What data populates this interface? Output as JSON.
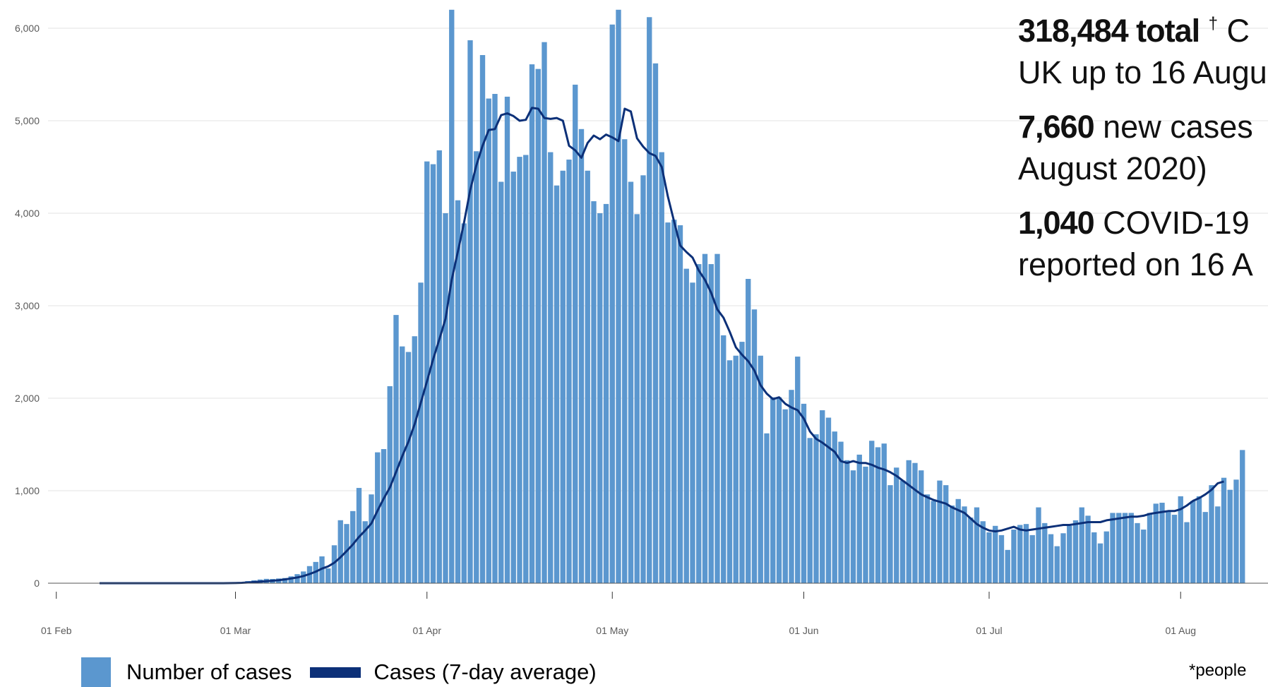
{
  "chart_data": {
    "type": "bar",
    "x_ticks": [
      "01 Feb",
      "01 Mar",
      "01 Apr",
      "01 May",
      "01 Jun",
      "01 Jul",
      "01 Aug"
    ],
    "y_ticks": [
      "0",
      "1,000",
      "2,000",
      "3,000",
      "4,000",
      "5,000",
      "6,000"
    ],
    "ylim": [
      0,
      6200
    ],
    "grid": true,
    "start_date": "2020-01-31",
    "series": [
      {
        "name": "Number of cases",
        "type": "bar",
        "color": "#5b97cf",
        "values": [
          2,
          0,
          0,
          0,
          0,
          0,
          0,
          0,
          3,
          0,
          0,
          0,
          0,
          0,
          0,
          0,
          0,
          0,
          0,
          0,
          0,
          0,
          0,
          0,
          0,
          0,
          0,
          0,
          0,
          4,
          3,
          12,
          23,
          31,
          40,
          47,
          46,
          51,
          56,
          74,
          98,
          127,
          185,
          230,
          290,
          160,
          410,
          681,
          640,
          780,
          1030,
          670,
          960,
          1415,
          1450,
          2130,
          2900,
          2560,
          2500,
          2670,
          3250,
          4560,
          4530,
          4680,
          4000,
          6200,
          4140,
          3890,
          5870,
          4670,
          5710,
          5240,
          5290,
          4340,
          5260,
          4450,
          4610,
          4630,
          5610,
          5560,
          5850,
          4660,
          4300,
          4460,
          4580,
          5390,
          4910,
          4460,
          4130,
          4000,
          4100,
          6040,
          6200,
          4800,
          4340,
          3990,
          4410,
          6120,
          5620,
          4660,
          3900,
          3930,
          3870,
          3400,
          3250,
          3450,
          3560,
          3450,
          3560,
          2680,
          2410,
          2460,
          2610,
          3290,
          2960,
          2460,
          1620,
          2010,
          2010,
          1880,
          2090,
          2450,
          1940,
          1570,
          1610,
          1870,
          1790,
          1640,
          1530,
          1330,
          1220,
          1390,
          1260,
          1540,
          1470,
          1510,
          1060,
          1250,
          1110,
          1330,
          1300,
          1220,
          960,
          890,
          1110,
          1060,
          840,
          910,
          830,
          710,
          820,
          670,
          550,
          620,
          520,
          360,
          580,
          630,
          640,
          520,
          820,
          650,
          530,
          400,
          540,
          620,
          680,
          820,
          730,
          550,
          430,
          560,
          760,
          760,
          760,
          760,
          650,
          580,
          760,
          860,
          870,
          770,
          740,
          940,
          660,
          890,
          940,
          770,
          1060,
          830,
          1140,
          1010,
          1120,
          1440
        ],
        "shown_values": [
          1060,
          830,
          1140,
          1010,
          1120,
          1440
        ]
      },
      {
        "name": "Cases (7-day average)",
        "type": "line",
        "color": "#0c3078",
        "values": [
          null,
          null,
          null,
          null,
          null,
          null,
          null,
          null,
          0,
          0,
          0,
          0,
          0,
          0,
          0,
          0,
          0,
          0,
          0,
          0,
          0,
          0,
          0,
          0,
          0,
          0,
          0,
          0,
          0,
          1,
          2,
          4,
          8,
          12,
          17,
          22,
          27,
          33,
          41,
          51,
          62,
          78,
          99,
          125,
          158,
          182,
          221,
          281,
          348,
          419,
          501,
          570,
          646,
          785,
          915,
          1036,
          1203,
          1375,
          1530,
          1719,
          1951,
          2183,
          2421,
          2637,
          2858,
          3280,
          3583,
          3900,
          4250,
          4520,
          4730,
          4900,
          4910,
          5060,
          5080,
          5050,
          5000,
          5010,
          5140,
          5130,
          5030,
          5020,
          5030,
          5000,
          4730,
          4680,
          4600,
          4760,
          4840,
          4800,
          4850,
          4820,
          4780,
          5130,
          5100,
          4810,
          4720,
          4650,
          4620,
          4500,
          4180,
          3910,
          3650,
          3580,
          3520,
          3380,
          3280,
          3140,
          2960,
          2870,
          2720,
          2550,
          2470,
          2400,
          2300,
          2140,
          2050,
          1990,
          2010,
          1940,
          1900,
          1870,
          1780,
          1640,
          1560,
          1520,
          1470,
          1420,
          1320,
          1300,
          1320,
          1300,
          1300,
          1280,
          1250,
          1230,
          1200,
          1160,
          1110,
          1060,
          1010,
          960,
          930,
          900,
          880,
          860,
          820,
          790,
          760,
          700,
          640,
          600,
          570,
          560,
          570,
          590,
          610,
          580,
          570,
          580,
          590,
          600,
          610,
          620,
          630,
          630,
          640,
          650,
          660,
          660,
          660,
          680,
          690,
          700,
          710,
          720,
          720,
          730,
          750,
          760,
          770,
          780,
          780,
          800,
          840,
          890,
          920,
          960,
          1010,
          1080,
          1100
        ]
      }
    ]
  },
  "stats": {
    "total_value": "318,484 total",
    "total_mark": "†",
    "total_rest_line1": "C",
    "total_line2": "UK up to 16 Augu",
    "new_value": "7,660",
    "new_rest_line1": "new cases",
    "new_line2": "August 2020)",
    "covid_value": "1,040",
    "covid_rest_line1": "COVID-19",
    "covid_line2": "reported on 16 A"
  },
  "footnote": "*people"
}
